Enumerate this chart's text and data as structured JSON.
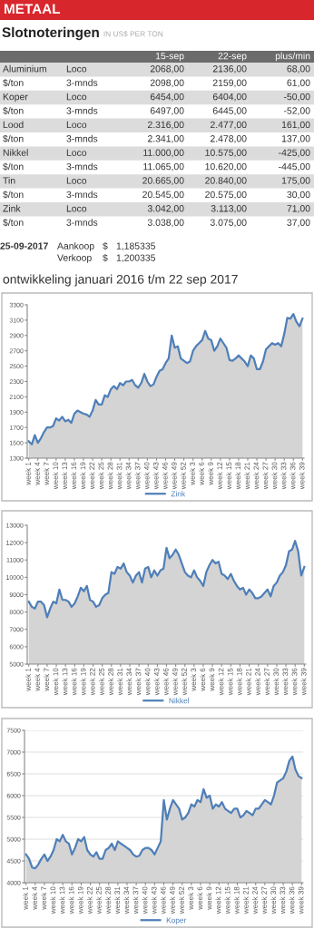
{
  "chart_data": [
    {
      "type": "other",
      "title": "METAAL",
      "subtitle": "Slotnoteringen",
      "annotations": [
        "IN US$ PER TON",
        "15-sep",
        "22-sep",
        "plus/min",
        "Aluminium",
        "Loco",
        "2068,00",
        "2136,00",
        "68,00",
        "$/ton",
        "3-mnds",
        "2098,00",
        "2159,00",
        "61,00",
        "Koper",
        "Loco",
        "6454,00",
        "6404,00",
        "-50,00",
        "$/ton",
        "3-mnds",
        "6497,00",
        "6445,00",
        "-52,00",
        "Lood",
        "Loco",
        "2.316,00",
        "2.477,00",
        "161,00",
        "$/ton",
        "3-mnds",
        "2.341,00",
        "2.478,00",
        "137,00",
        "Nikkel",
        "Loco",
        "11.000,00",
        "10.575,00",
        "-425,00",
        "$/ton",
        "3-mnds",
        "11.065,00",
        "10.620,00",
        "-445,00",
        "Tin",
        "Loco",
        "20.665,00",
        "20.840,00",
        "175,00",
        "$/ton",
        "3-mnds",
        "20.545,00",
        "20.575,00",
        "30,00",
        "Zink",
        "Loco",
        "3.042,00",
        "3.113,00",
        "71,00",
        "$/ton",
        "3-mnds",
        "3.038,00",
        "3.075,00",
        "37,00",
        "25-09-2017",
        "Aankoop",
        "$",
        "1,185335",
        "Verkoop",
        "$",
        "1,200335"
      ]
    },
    {
      "type": "area",
      "title": "ontwikkeling januari 2016 t/m 22 sep 2017",
      "categories": [
        "week 1",
        null,
        null,
        "week 4",
        null,
        null,
        "week 7",
        null,
        null,
        "week 10",
        null,
        null,
        "week 13",
        null,
        null,
        "week 16",
        null,
        null,
        "week 19",
        null,
        null,
        "week 22",
        null,
        null,
        "week 25",
        null,
        null,
        "week 28",
        null,
        null,
        "week 31",
        null,
        null,
        "week 34",
        null,
        null,
        "week 37",
        null,
        null,
        "week 40",
        null,
        null,
        "week 43",
        null,
        null,
        "week 46",
        null,
        null,
        "week 49",
        null,
        null,
        "week 52",
        null,
        null,
        "week 3",
        null,
        null,
        "week 6",
        null,
        null,
        "week 9",
        null,
        null,
        "week 12",
        null,
        null,
        "week 15",
        null,
        null,
        "week 18",
        null,
        null,
        "week 21",
        null,
        null,
        "week 24",
        null,
        null,
        "week 27",
        null,
        null,
        "week 30",
        null,
        null,
        "week 33",
        null,
        null,
        "week 36",
        null,
        null,
        "week 39"
      ],
      "series": [
        {
          "name": "Zink",
          "color": "#4f7fb8",
          "values": [
            1520,
            1480,
            1600,
            1500,
            1560,
            1640,
            1700,
            1700,
            1720,
            1820,
            1790,
            1840,
            1780,
            1800,
            1760,
            1880,
            1920,
            1900,
            1880,
            1870,
            1840,
            1920,
            2060,
            2000,
            2000,
            2120,
            2100,
            2200,
            2240,
            2200,
            2280,
            2250,
            2300,
            2300,
            2320,
            2250,
            2220,
            2280,
            2400,
            2300,
            2240,
            2260,
            2360,
            2440,
            2460,
            2540,
            2600,
            2900,
            2740,
            2760,
            2600,
            2570,
            2540,
            2560,
            2700,
            2760,
            2800,
            2840,
            2960,
            2860,
            2840,
            2700,
            2760,
            2860,
            2800,
            2740,
            2580,
            2570,
            2600,
            2640,
            2600,
            2560,
            2500,
            2640,
            2600,
            2460,
            2460,
            2560,
            2720,
            2760,
            2800,
            2780,
            2800,
            2760,
            2920,
            3130,
            3120,
            3180,
            3080,
            3020,
            3120
          ]
        }
      ],
      "ylim": [
        1300,
        3300
      ],
      "yticks": [
        1300,
        1500,
        1700,
        1900,
        2100,
        2300,
        2500,
        2700,
        2900,
        3100,
        3300
      ],
      "grid": false,
      "legend": "bottom",
      "marker": "none",
      "line_style": "solid"
    },
    {
      "type": "area",
      "categories": [
        "week 1",
        null,
        null,
        "week 4",
        null,
        null,
        "week 7",
        null,
        null,
        "week 10",
        null,
        null,
        "week 13",
        null,
        null,
        "week 16",
        null,
        null,
        "week 19",
        null,
        null,
        "week 22",
        null,
        null,
        "week 25",
        null,
        null,
        "week 28",
        null,
        null,
        "week 31",
        null,
        null,
        "week 34",
        null,
        null,
        "week 37",
        null,
        null,
        "week 40",
        null,
        null,
        "week 43",
        null,
        null,
        "week 46",
        null,
        null,
        "week 49",
        null,
        null,
        "week 52",
        null,
        null,
        "week 3",
        null,
        null,
        "week 6",
        null,
        null,
        "week 9",
        null,
        null,
        "week 12",
        null,
        null,
        "week 15",
        null,
        null,
        "week 18",
        null,
        null,
        "week 21",
        null,
        null,
        "week 24",
        null,
        null,
        "week 27",
        null,
        null,
        "week 30",
        null,
        null,
        "week 33",
        null,
        null,
        "week 36",
        null,
        null,
        "week 39"
      ],
      "series": [
        {
          "name": "Nikkel",
          "color": "#4f7fb8",
          "values": [
            8600,
            8300,
            8200,
            8600,
            8600,
            8400,
            7700,
            8200,
            8600,
            8500,
            9300,
            8700,
            8700,
            8600,
            8300,
            8500,
            8900,
            9400,
            9200,
            9500,
            8700,
            8600,
            8300,
            8400,
            8800,
            9000,
            9100,
            10300,
            10200,
            10600,
            10500,
            10800,
            10300,
            10100,
            9700,
            10100,
            10300,
            9700,
            10500,
            10600,
            10000,
            10400,
            10100,
            10400,
            10500,
            11700,
            11100,
            11300,
            11600,
            11300,
            10800,
            10300,
            10100,
            10000,
            10400,
            10000,
            9800,
            9500,
            10300,
            10700,
            11000,
            10800,
            10900,
            10200,
            10100,
            9900,
            10200,
            9800,
            9500,
            9300,
            9400,
            9000,
            9300,
            9100,
            8800,
            8800,
            8900,
            9100,
            9300,
            8900,
            9500,
            9700,
            10100,
            10300,
            10700,
            11500,
            11600,
            12100,
            11500,
            10100,
            10600
          ]
        }
      ],
      "ylim": [
        5000,
        13000
      ],
      "yticks": [
        5000,
        6000,
        7000,
        8000,
        9000,
        10000,
        11000,
        12000,
        13000
      ],
      "grid": false,
      "legend": "bottom",
      "marker": "none",
      "line_style": "solid"
    },
    {
      "type": "area",
      "categories": [
        "week 1",
        null,
        null,
        "week 4",
        null,
        null,
        "week 7",
        null,
        null,
        "week 10",
        null,
        null,
        "week 13",
        null,
        null,
        "week 16",
        null,
        null,
        "week 19",
        null,
        null,
        "week 22",
        null,
        null,
        "week 25",
        null,
        null,
        "week 28",
        null,
        null,
        "week 31",
        null,
        null,
        "week 34",
        null,
        null,
        "week 37",
        null,
        null,
        "week 40",
        null,
        null,
        "week 43",
        null,
        null,
        "week 46",
        null,
        null,
        "week 49",
        null,
        null,
        "week 52",
        null,
        null,
        "week 3",
        null,
        null,
        "week 6",
        null,
        null,
        "week 9",
        null,
        null,
        "week 12",
        null,
        null,
        "week 15",
        null,
        null,
        "week 18",
        null,
        null,
        "week 21",
        null,
        null,
        "week 24",
        null,
        null,
        "week 27",
        null,
        null,
        "week 30",
        null,
        null,
        "week 33",
        null,
        null,
        "week 36",
        null,
        null,
        "week 39"
      ],
      "series": [
        {
          "name": "Koper",
          "color": "#4f7fb8",
          "values": [
            4650,
            4550,
            4350,
            4330,
            4420,
            4550,
            4650,
            4500,
            4600,
            4750,
            5000,
            4950,
            5100,
            4950,
            4900,
            4650,
            4800,
            5000,
            4950,
            5050,
            4750,
            4650,
            4600,
            4700,
            4550,
            4550,
            4750,
            4800,
            4900,
            4750,
            4950,
            4900,
            4850,
            4800,
            4750,
            4650,
            4600,
            4620,
            4750,
            4800,
            4800,
            4750,
            4650,
            4800,
            4950,
            5900,
            5450,
            5700,
            5900,
            5800,
            5700,
            5450,
            5500,
            5600,
            5800,
            5750,
            5900,
            5850,
            6150,
            5950,
            6000,
            5700,
            5800,
            5750,
            5850,
            5700,
            5650,
            5600,
            5700,
            5700,
            5500,
            5550,
            5650,
            5600,
            5550,
            5700,
            5700,
            5800,
            5900,
            5850,
            5800,
            6000,
            6300,
            6350,
            6400,
            6550,
            6800,
            6900,
            6600,
            6450,
            6400
          ]
        }
      ],
      "ylim": [
        4000,
        7500
      ],
      "yticks": [
        4000,
        4500,
        5000,
        5500,
        6000,
        6500,
        7000,
        7500
      ],
      "grid": "y",
      "legend": "bottom",
      "marker": "none",
      "line_style": "solid"
    }
  ]
}
